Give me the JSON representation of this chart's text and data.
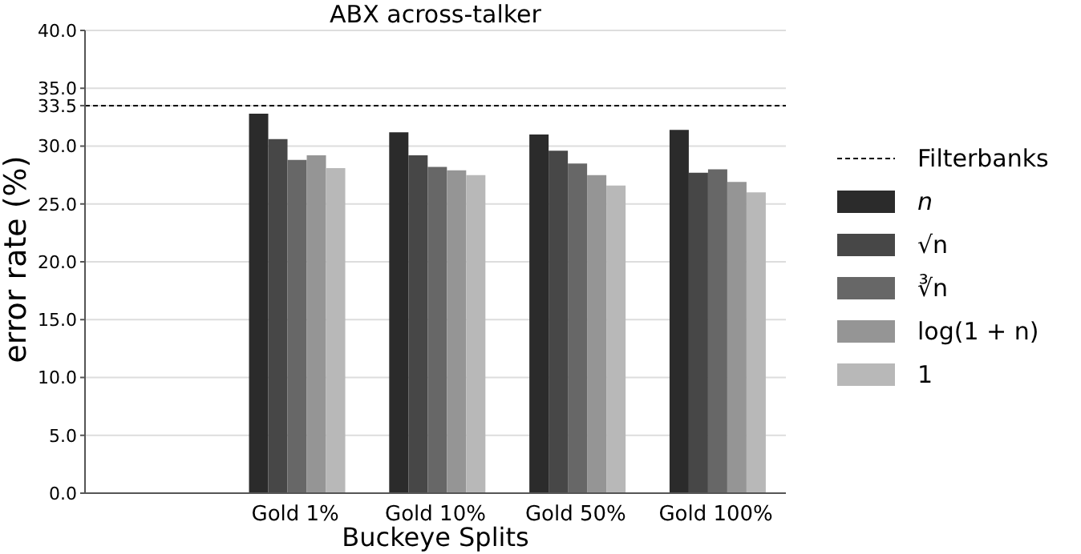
{
  "chart_data": {
    "type": "bar",
    "title": "ABX across-talker",
    "xlabel": "Buckeye Splits",
    "ylabel": "error rate (%)",
    "categories": [
      null,
      "Gold 1%",
      "Gold 10%",
      "Gold 50%",
      "Gold 100%"
    ],
    "series": [
      {
        "name": "n",
        "color": "#2b2b2b",
        "values": [
          null,
          32.8,
          31.2,
          31.0,
          31.4
        ]
      },
      {
        "name": "√n",
        "color": "#474747",
        "values": [
          null,
          30.6,
          29.2,
          29.6,
          27.7
        ]
      },
      {
        "name": "∛n",
        "color": "#676767",
        "values": [
          null,
          28.8,
          28.2,
          28.5,
          28.0
        ]
      },
      {
        "name": "log(1 + n)",
        "color": "#959595",
        "values": [
          null,
          29.2,
          27.9,
          27.5,
          26.9
        ]
      },
      {
        "name": "1",
        "color": "#b8b8b8",
        "values": [
          null,
          28.1,
          27.5,
          26.6,
          26.0
        ]
      }
    ],
    "ylim": [
      0,
      40
    ],
    "yticks": [
      {
        "value": 0,
        "label": "0.0"
      },
      {
        "value": 5,
        "label": "5.0"
      },
      {
        "value": 10,
        "label": "10.0"
      },
      {
        "value": 15,
        "label": "15.0"
      },
      {
        "value": 20,
        "label": "20.0"
      },
      {
        "value": 25,
        "label": "25.0"
      },
      {
        "value": 30,
        "label": "30.0"
      },
      {
        "value": 33.5,
        "label": "33.5"
      },
      {
        "value": 35,
        "label": "35.0"
      },
      {
        "value": 40,
        "label": "40.0"
      }
    ],
    "ref_lines": [
      {
        "axis": "y",
        "value": 33.5,
        "label": "Filterbanks",
        "color": "#000000",
        "line_style": "dashed"
      }
    ],
    "grid": "y",
    "legend": "right"
  }
}
